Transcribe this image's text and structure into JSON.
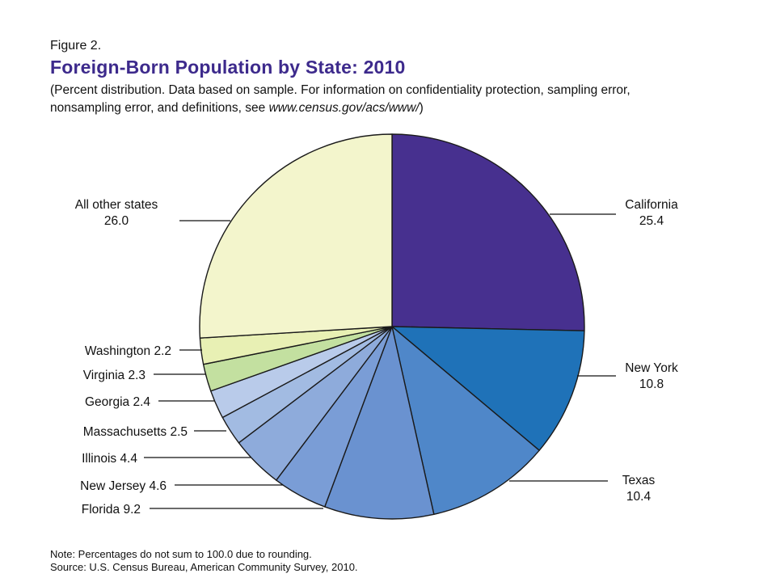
{
  "header": {
    "figure_label": "Figure 2.",
    "title": "Foreign-Born Population by State:  2010",
    "subtitle_line1": "(Percent distribution. Data based on sample. For information on confidentiality protection, sampling error,",
    "subtitle_line2_prefix": "nonsampling error, and definitions, see ",
    "subtitle_url": "www.census.gov/acs/www/",
    "subtitle_line2_suffix": ")"
  },
  "chart_data": {
    "type": "pie",
    "title": "Foreign-Born Population by State:  2010",
    "start": "12 o'clock",
    "direction": "clockwise",
    "slices": [
      {
        "label": "California",
        "value": 25.4,
        "color": "#47308f"
      },
      {
        "label": "New York",
        "value": 10.8,
        "color": "#1f72b8"
      },
      {
        "label": "Texas",
        "value": 10.4,
        "color": "#4f87c9"
      },
      {
        "label": "Florida",
        "value": 9.2,
        "color": "#6a92d0"
      },
      {
        "label": "New Jersey",
        "value": 4.6,
        "color": "#7a9dd6"
      },
      {
        "label": "Illinois",
        "value": 4.4,
        "color": "#8eabdb"
      },
      {
        "label": "Massachusetts",
        "value": 2.5,
        "color": "#a2bbe2"
      },
      {
        "label": "Georgia",
        "value": 2.4,
        "color": "#b9cbea"
      },
      {
        "label": "Virginia",
        "value": 2.3,
        "color": "#c3e0a0"
      },
      {
        "label": "Washington",
        "value": 2.2,
        "color": "#e8f0b4"
      },
      {
        "label": "All other states",
        "value": 26.0,
        "color": "#f3f5cc"
      }
    ]
  },
  "labels": {
    "california": {
      "name": "California",
      "value": "25.4"
    },
    "new_york": {
      "name": "New York",
      "value": "10.8"
    },
    "texas": {
      "name": "Texas",
      "value": "10.4"
    },
    "all_other": {
      "name": "All other states",
      "value": "26.0"
    },
    "washington": "Washington 2.2",
    "virginia": "Virginia 2.3",
    "georgia": "Georgia 2.4",
    "massachusetts": "Massachusetts 2.5",
    "illinois": "Illinois 4.4",
    "new_jersey": "New Jersey 4.6",
    "florida": "Florida 9.2"
  },
  "footer": {
    "note": "Note: Percentages do not sum to 100.0 due to rounding.",
    "source": "Source: U.S. Census Bureau, American Community Survey, 2010."
  }
}
